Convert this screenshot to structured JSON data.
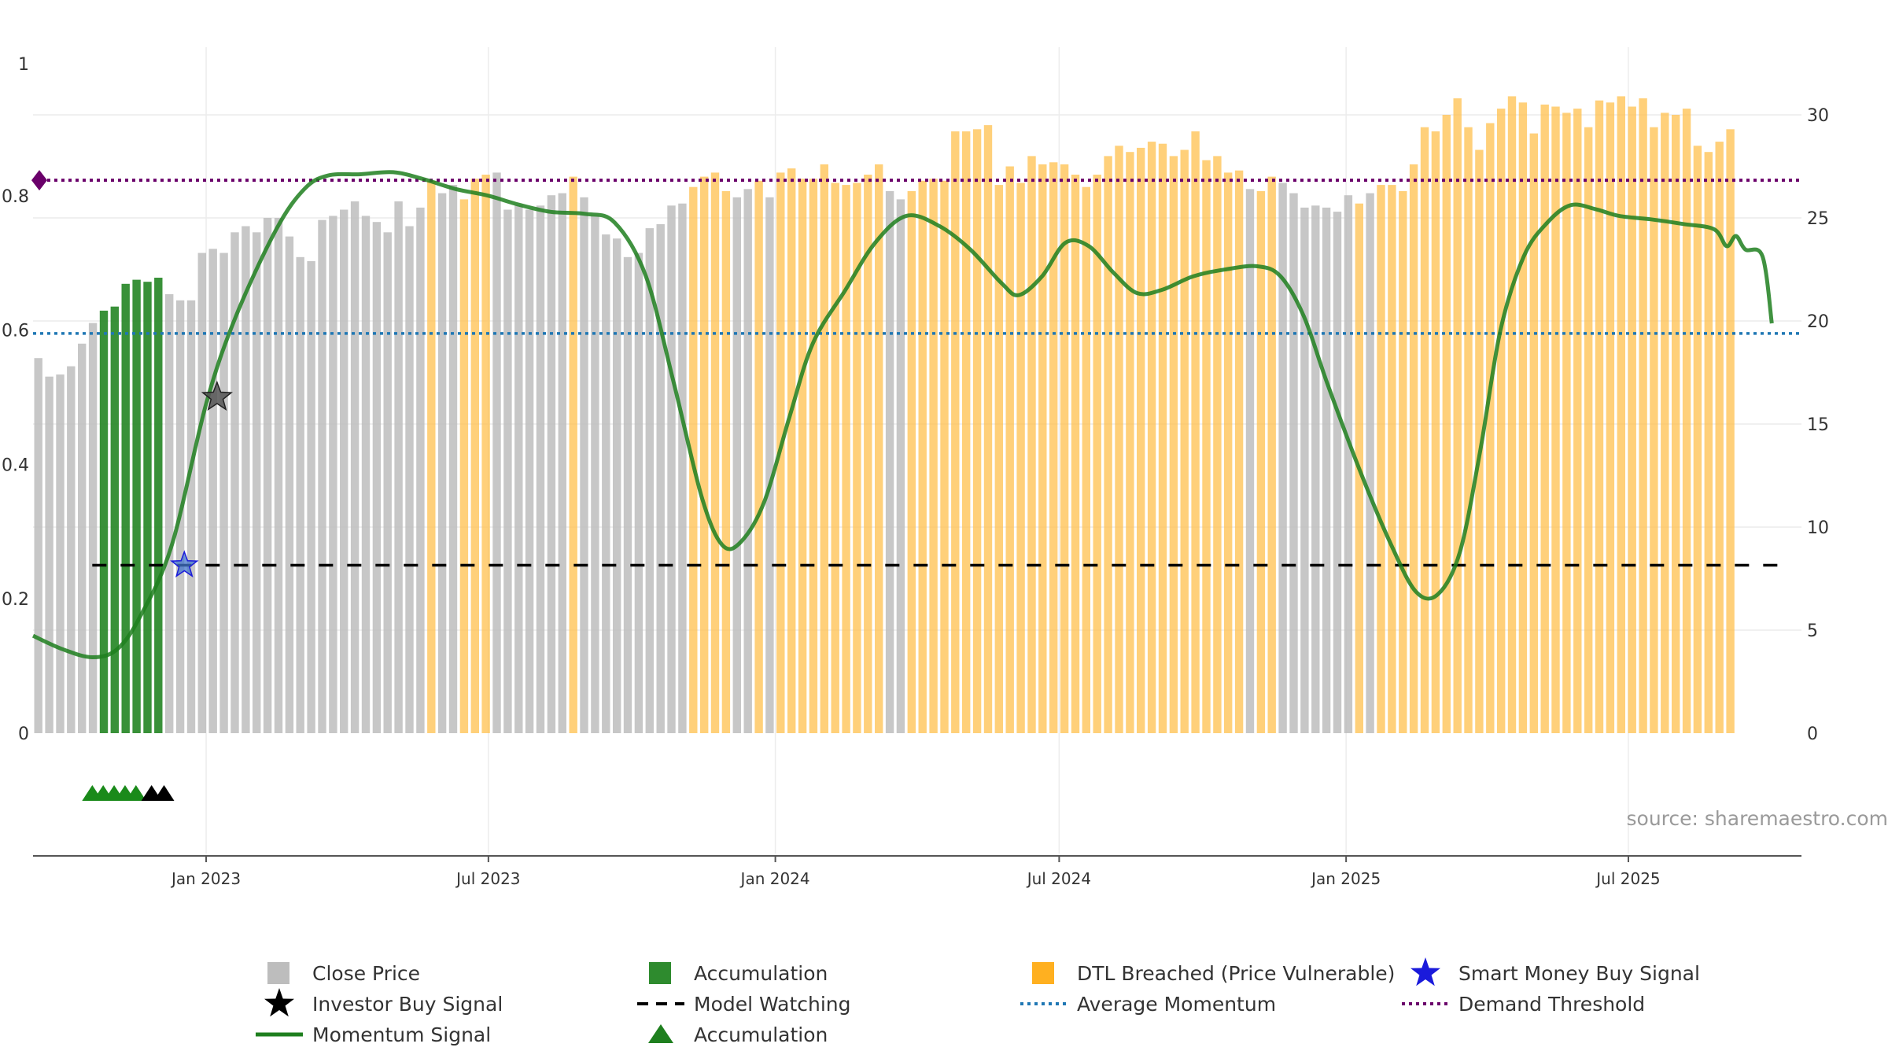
{
  "chart_data": {
    "type": "bar",
    "title": "",
    "source_text": "source: sharemaestro.com",
    "left_axis": {
      "range": [
        0,
        1
      ],
      "ticks": [
        0,
        0.2,
        0.4,
        0.6,
        0.8
      ],
      "tick_labels": [
        "0",
        "0.2",
        "0.4",
        "0.6",
        "0.8"
      ],
      "top_label": "1"
    },
    "right_axis": {
      "range": [
        0,
        32.3
      ],
      "ticks": [
        0,
        5,
        10,
        15,
        20,
        25,
        30
      ],
      "tick_labels": [
        "0",
        "5",
        "10",
        "15",
        "20",
        "25",
        "30"
      ]
    },
    "x_axis": {
      "start": "2022-09-12",
      "end": "2025-10-20",
      "ticks": [
        "2023-01-01",
        "2023-07-01",
        "2024-01-01",
        "2024-07-01",
        "2025-01-01",
        "2025-07-01"
      ],
      "tick_labels": [
        "Jan 2023",
        "Jul 2023",
        "Jan 2024",
        "Jul 2024",
        "Jan 2025",
        "Jul 2025"
      ]
    },
    "grid": true,
    "legend_position": "bottom",
    "colors": {
      "close": "#bdbdbd",
      "accumulation": "#2e8b2e",
      "dtl": "#ffc04d",
      "momentum": "#1e7f1e",
      "model_watching": "#000000",
      "average_momentum": "#1f77b4",
      "demand_threshold": "#6a006a",
      "smart_money": "#1a1adb",
      "investor_buy": "#000000"
    },
    "bars": {
      "start_date": "2022-09-12",
      "interval_days": 7,
      "values": [
        18.2,
        17.3,
        17.4,
        17.8,
        18.9,
        19.9,
        20.5,
        20.7,
        21.8,
        22.0,
        21.9,
        22.1,
        21.3,
        21.0,
        21.0,
        23.3,
        23.5,
        23.3,
        24.3,
        24.6,
        24.3,
        25.0,
        25.0,
        24.1,
        23.1,
        22.9,
        24.9,
        25.1,
        25.4,
        25.8,
        25.1,
        24.8,
        24.3,
        25.8,
        24.6,
        25.5,
        26.8,
        26.2,
        26.6,
        25.9,
        26.9,
        27.1,
        27.2,
        25.4,
        25.6,
        25.4,
        25.6,
        26.1,
        26.2,
        27.0,
        26.0,
        25.1,
        24.2,
        24.0,
        23.1,
        23.3,
        24.5,
        24.7,
        25.6,
        25.7,
        26.5,
        27.0,
        27.2,
        26.3,
        26.0,
        26.4,
        26.8,
        26.0,
        27.2,
        27.4,
        26.9,
        26.9,
        27.6,
        26.7,
        26.6,
        26.7,
        27.1,
        27.6,
        26.3,
        25.9,
        26.3,
        26.8,
        26.9,
        26.8,
        29.2,
        29.2,
        29.3,
        29.5,
        26.6,
        27.5,
        26.7,
        28.0,
        27.6,
        27.7,
        27.6,
        27.1,
        26.5,
        27.1,
        28.0,
        28.5,
        28.2,
        28.4,
        28.7,
        28.6,
        28.0,
        28.3,
        29.2,
        27.8,
        28.0,
        27.2,
        27.3,
        26.4,
        26.3,
        27.0,
        26.7,
        26.2,
        25.5,
        25.6,
        25.5,
        25.3,
        26.1,
        25.7,
        26.2,
        26.6,
        26.6,
        26.3,
        27.6,
        29.4,
        29.2,
        30.0,
        30.8,
        29.4,
        28.3,
        29.6,
        30.3,
        30.9,
        30.6,
        29.1,
        30.5,
        30.4,
        30.1,
        30.3,
        29.4,
        30.7,
        30.6,
        30.9,
        30.4,
        30.8,
        29.4,
        30.1,
        30.0,
        30.3,
        28.5,
        28.2,
        28.7,
        29.3
      ],
      "status": [
        "c",
        "c",
        "c",
        "c",
        "c",
        "c",
        "a",
        "a",
        "a",
        "a",
        "a",
        "a",
        "c",
        "c",
        "c",
        "c",
        "c",
        "c",
        "c",
        "c",
        "c",
        "c",
        "c",
        "c",
        "c",
        "c",
        "c",
        "c",
        "c",
        "c",
        "c",
        "c",
        "c",
        "c",
        "c",
        "c",
        "d",
        "c",
        "c",
        "d",
        "d",
        "d",
        "c",
        "c",
        "c",
        "c",
        "c",
        "c",
        "c",
        "d",
        "c",
        "c",
        "c",
        "c",
        "c",
        "c",
        "c",
        "c",
        "c",
        "c",
        "d",
        "d",
        "d",
        "d",
        "c",
        "c",
        "d",
        "c",
        "d",
        "d",
        "d",
        "d",
        "d",
        "d",
        "d",
        "d",
        "d",
        "d",
        "c",
        "c",
        "d",
        "d",
        "d",
        "d",
        "d",
        "d",
        "d",
        "d",
        "d",
        "d",
        "d",
        "d",
        "d",
        "d",
        "d",
        "d",
        "d",
        "d",
        "d",
        "d",
        "d",
        "d",
        "d",
        "d",
        "d",
        "d",
        "d",
        "d",
        "d",
        "d",
        "d",
        "c",
        "d",
        "d",
        "c",
        "c",
        "c",
        "c",
        "c",
        "c",
        "c",
        "d",
        "c",
        "d",
        "d",
        "d",
        "d",
        "d",
        "d",
        "d",
        "d",
        "d",
        "d",
        "d",
        "d",
        "d",
        "d",
        "d",
        "d",
        "d",
        "d",
        "d",
        "d",
        "d",
        "d",
        "d",
        "d",
        "d",
        "d",
        "d",
        "d",
        "d",
        "d",
        "d",
        "d",
        "d",
        "d",
        "d",
        "d",
        "d"
      ]
    },
    "momentum": {
      "points": [
        [
          "2022-09-12",
          0.145
        ],
        [
          "2022-10-01",
          0.125
        ],
        [
          "2022-10-20",
          0.113
        ],
        [
          "2022-11-05",
          0.125
        ],
        [
          "2022-11-20",
          0.175
        ],
        [
          "2022-12-10",
          0.28
        ],
        [
          "2023-01-01",
          0.49
        ],
        [
          "2023-01-20",
          0.62
        ],
        [
          "2023-02-15",
          0.75
        ],
        [
          "2023-03-05",
          0.81
        ],
        [
          "2023-03-20",
          0.83
        ],
        [
          "2023-04-10",
          0.832
        ],
        [
          "2023-05-01",
          0.835
        ],
        [
          "2023-05-20",
          0.825
        ],
        [
          "2023-06-10",
          0.81
        ],
        [
          "2023-07-01",
          0.8
        ],
        [
          "2023-07-20",
          0.787
        ],
        [
          "2023-08-10",
          0.776
        ],
        [
          "2023-09-01",
          0.773
        ],
        [
          "2023-09-20",
          0.76
        ],
        [
          "2023-10-10",
          0.68
        ],
        [
          "2023-10-28",
          0.52
        ],
        [
          "2023-11-15",
          0.35
        ],
        [
          "2023-11-28",
          0.28
        ],
        [
          "2023-12-10",
          0.285
        ],
        [
          "2023-12-25",
          0.345
        ],
        [
          "2024-01-10",
          0.47
        ],
        [
          "2024-01-25",
          0.58
        ],
        [
          "2024-02-15",
          0.66
        ],
        [
          "2024-03-05",
          0.73
        ],
        [
          "2024-03-25",
          0.77
        ],
        [
          "2024-04-15",
          0.755
        ],
        [
          "2024-05-05",
          0.72
        ],
        [
          "2024-05-25",
          0.67
        ],
        [
          "2024-06-05",
          0.652
        ],
        [
          "2024-06-20",
          0.68
        ],
        [
          "2024-07-05",
          0.73
        ],
        [
          "2024-07-20",
          0.725
        ],
        [
          "2024-08-05",
          0.685
        ],
        [
          "2024-08-20",
          0.655
        ],
        [
          "2024-09-05",
          0.66
        ],
        [
          "2024-09-25",
          0.68
        ],
        [
          "2024-10-15",
          0.69
        ],
        [
          "2024-11-05",
          0.695
        ],
        [
          "2024-11-20",
          0.68
        ],
        [
          "2024-12-05",
          0.62
        ],
        [
          "2024-12-20",
          0.52
        ],
        [
          "2025-01-10",
          0.39
        ],
        [
          "2025-01-30",
          0.28
        ],
        [
          "2025-02-15",
          0.21
        ],
        [
          "2025-03-01",
          0.207
        ],
        [
          "2025-03-15",
          0.27
        ],
        [
          "2025-03-28",
          0.42
        ],
        [
          "2025-04-10",
          0.6
        ],
        [
          "2025-04-25",
          0.71
        ],
        [
          "2025-05-10",
          0.76
        ],
        [
          "2025-05-25",
          0.786
        ],
        [
          "2025-06-10",
          0.78
        ],
        [
          "2025-06-25",
          0.77
        ],
        [
          "2025-07-15",
          0.765
        ],
        [
          "2025-08-05",
          0.758
        ],
        [
          "2025-08-25",
          0.75
        ],
        [
          "2025-09-02",
          0.725
        ],
        [
          "2025-09-08",
          0.74
        ],
        [
          "2025-09-14",
          0.72
        ],
        [
          "2025-09-25",
          0.71
        ],
        [
          "2025-10-01",
          0.61
        ]
      ]
    },
    "average_momentum": 0.595,
    "demand_threshold": 0.823,
    "model_watching": {
      "value": 0.25,
      "start": "2022-10-20",
      "end": "2025-10-20"
    },
    "signals": {
      "smart_money_buy": [
        [
          "2022-12-18",
          0.25
        ]
      ],
      "investor_buy": [
        [
          "2023-01-08",
          0.5
        ]
      ],
      "accumulation_markers": [
        "2022-10-20",
        "2022-10-27",
        "2022-11-03",
        "2022-11-10",
        "2022-11-17"
      ],
      "investor_markers": [
        "2022-11-27",
        "2022-12-05"
      ]
    },
    "legend": [
      {
        "label": "Close Price",
        "symbol": "square",
        "color": "#bdbdbd"
      },
      {
        "label": "Investor Buy Signal",
        "symbol": "star",
        "color": "#000000"
      },
      {
        "label": "Momentum Signal",
        "symbol": "line",
        "color": "#1e7f1e"
      },
      {
        "label": "Accumulation",
        "symbol": "square",
        "color": "#2e8b2e"
      },
      {
        "label": "Model Watching",
        "symbol": "dash",
        "color": "#000000"
      },
      {
        "label": "Accumulation",
        "symbol": "triangle",
        "color": "#1e7f1e"
      },
      {
        "label": "DTL Breached (Price Vulnerable)",
        "symbol": "square",
        "color": "#ffb020"
      },
      {
        "label": "Average Momentum",
        "symbol": "dot",
        "color": "#1f77b4"
      },
      {
        "label": "Smart Money Buy Signal",
        "symbol": "star",
        "color": "#1a1adb"
      },
      {
        "label": "Demand Threshold",
        "symbol": "dot",
        "color": "#6a006a"
      }
    ]
  }
}
